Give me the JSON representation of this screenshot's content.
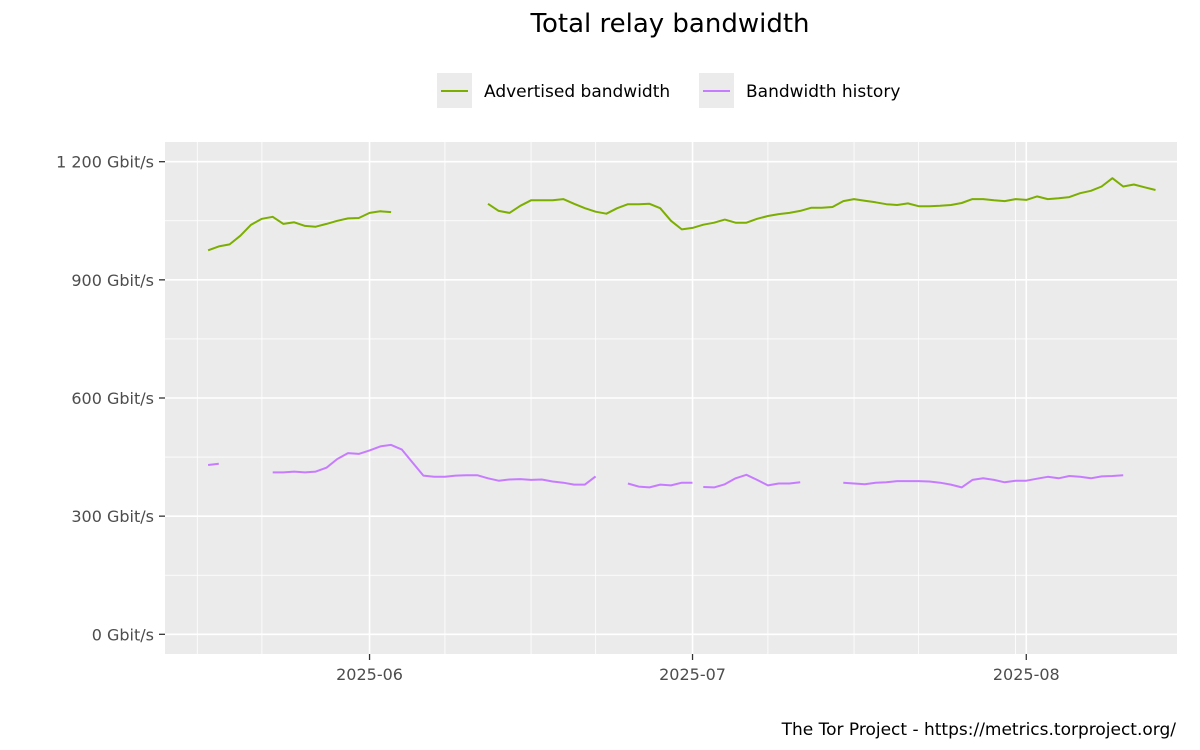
{
  "chart_data": {
    "type": "line",
    "title": "Total relay bandwidth",
    "caption": "The Tor Project - https://metrics.torproject.org/",
    "xlabel": "",
    "ylabel": "",
    "ylim": [
      -50,
      1250
    ],
    "xlim": [
      "2025-05-13",
      "2025-08-15"
    ],
    "y_ticks": [
      {
        "value": 0,
        "label": "0 Gbit/s"
      },
      {
        "value": 300,
        "label": "300 Gbit/s"
      },
      {
        "value": 600,
        "label": "600 Gbit/s"
      },
      {
        "value": 900,
        "label": "900 Gbit/s"
      },
      {
        "value": 1200,
        "label": "1 200 Gbit/s"
      }
    ],
    "y_minor_ticks": [
      150,
      450,
      750,
      1050
    ],
    "x_ticks": [
      {
        "value": "2025-06-01",
        "label": "2025-06"
      },
      {
        "value": "2025-07-01",
        "label": "2025-07"
      },
      {
        "value": "2025-08-01",
        "label": "2025-08"
      }
    ],
    "x_minor_ticks": [
      "2025-05-16",
      "2025-06-16",
      "2025-07-16"
    ],
    "x_extra_grid": [
      "2025-05-22",
      "2025-06-08",
      "2025-06-22",
      "2025-07-08",
      "2025-07-22",
      "2025-07-31"
    ],
    "grid": true,
    "legend_position": "top",
    "colors": {
      "advertised": "#7cae00",
      "history": "#c77cff",
      "panel": "#ebebeb",
      "grid": "#ffffff"
    },
    "series": [
      {
        "name": "Advertised bandwidth",
        "color": "#7cae00",
        "segments": [
          [
            [
              "2025-05-17",
              975
            ],
            [
              "2025-05-18",
              985
            ],
            [
              "2025-05-19",
              990
            ],
            [
              "2025-05-20",
              1012
            ],
            [
              "2025-05-21",
              1040
            ],
            [
              "2025-05-22",
              1055
            ],
            [
              "2025-05-23",
              1060
            ],
            [
              "2025-05-24",
              1042
            ],
            [
              "2025-05-25",
              1046
            ],
            [
              "2025-05-26",
              1037
            ],
            [
              "2025-05-27",
              1035
            ],
            [
              "2025-05-28",
              1042
            ],
            [
              "2025-05-29",
              1050
            ],
            [
              "2025-05-30",
              1056
            ],
            [
              "2025-05-31",
              1057
            ],
            [
              "2025-06-01",
              1070
            ],
            [
              "2025-06-02",
              1074
            ],
            [
              "2025-06-03",
              1072
            ]
          ],
          [
            [
              "2025-06-12",
              1093
            ],
            [
              "2025-06-13",
              1075
            ],
            [
              "2025-06-14",
              1070
            ],
            [
              "2025-06-15",
              1088
            ],
            [
              "2025-06-16",
              1102
            ],
            [
              "2025-06-17",
              1102
            ],
            [
              "2025-06-18",
              1102
            ],
            [
              "2025-06-19",
              1105
            ],
            [
              "2025-06-20",
              1093
            ],
            [
              "2025-06-21",
              1082
            ],
            [
              "2025-06-22",
              1073
            ],
            [
              "2025-06-23",
              1068
            ],
            [
              "2025-06-24",
              1082
            ],
            [
              "2025-06-25",
              1092
            ],
            [
              "2025-06-26",
              1092
            ],
            [
              "2025-06-27",
              1093
            ],
            [
              "2025-06-28",
              1082
            ],
            [
              "2025-06-29",
              1050
            ],
            [
              "2025-06-30",
              1028
            ],
            [
              "2025-07-01",
              1032
            ],
            [
              "2025-07-02",
              1040
            ],
            [
              "2025-07-03",
              1045
            ],
            [
              "2025-07-04",
              1053
            ],
            [
              "2025-07-05",
              1045
            ],
            [
              "2025-07-06",
              1045
            ],
            [
              "2025-07-07",
              1055
            ],
            [
              "2025-07-08",
              1062
            ],
            [
              "2025-07-09",
              1067
            ],
            [
              "2025-07-10",
              1070
            ],
            [
              "2025-07-11",
              1075
            ],
            [
              "2025-07-12",
              1083
            ],
            [
              "2025-07-13",
              1083
            ],
            [
              "2025-07-14",
              1085
            ],
            [
              "2025-07-15",
              1100
            ],
            [
              "2025-07-16",
              1105
            ],
            [
              "2025-07-17",
              1101
            ],
            [
              "2025-07-18",
              1097
            ],
            [
              "2025-07-19",
              1092
            ],
            [
              "2025-07-20",
              1090
            ],
            [
              "2025-07-21",
              1094
            ],
            [
              "2025-07-22",
              1087
            ],
            [
              "2025-07-23",
              1087
            ],
            [
              "2025-07-24",
              1088
            ],
            [
              "2025-07-25",
              1090
            ],
            [
              "2025-07-26",
              1095
            ],
            [
              "2025-07-27",
              1105
            ],
            [
              "2025-07-28",
              1105
            ],
            [
              "2025-07-29",
              1102
            ],
            [
              "2025-07-30",
              1100
            ],
            [
              "2025-07-31",
              1105
            ],
            [
              "2025-08-01",
              1103
            ],
            [
              "2025-08-02",
              1112
            ],
            [
              "2025-08-03",
              1105
            ],
            [
              "2025-08-04",
              1107
            ],
            [
              "2025-08-05",
              1110
            ],
            [
              "2025-08-06",
              1120
            ],
            [
              "2025-08-07",
              1126
            ],
            [
              "2025-08-08",
              1137
            ],
            [
              "2025-08-09",
              1158
            ],
            [
              "2025-08-10",
              1137
            ],
            [
              "2025-08-11",
              1142
            ],
            [
              "2025-08-12",
              1135
            ],
            [
              "2025-08-13",
              1128
            ]
          ]
        ]
      },
      {
        "name": "Bandwidth history",
        "color": "#c77cff",
        "segments": [
          [
            [
              "2025-05-17",
              430
            ],
            [
              "2025-05-18",
              433
            ]
          ],
          [
            [
              "2025-05-23",
              411
            ],
            [
              "2025-05-24",
              411
            ],
            [
              "2025-05-25",
              413
            ],
            [
              "2025-05-26",
              411
            ],
            [
              "2025-05-27",
              413
            ],
            [
              "2025-05-28",
              423
            ],
            [
              "2025-05-29",
              445
            ],
            [
              "2025-05-30",
              460
            ],
            [
              "2025-05-31",
              458
            ],
            [
              "2025-06-01",
              467
            ],
            [
              "2025-06-02",
              477
            ],
            [
              "2025-06-03",
              481
            ],
            [
              "2025-06-04",
              469
            ],
            [
              "2025-06-05",
              436
            ],
            [
              "2025-06-06",
              403
            ],
            [
              "2025-06-07",
              400
            ],
            [
              "2025-06-08",
              400
            ],
            [
              "2025-06-09",
              403
            ],
            [
              "2025-06-10",
              404
            ],
            [
              "2025-06-11",
              404
            ],
            [
              "2025-06-12",
              396
            ],
            [
              "2025-06-13",
              390
            ],
            [
              "2025-06-14",
              393
            ],
            [
              "2025-06-15",
              394
            ],
            [
              "2025-06-16",
              392
            ],
            [
              "2025-06-17",
              393
            ],
            [
              "2025-06-18",
              388
            ],
            [
              "2025-06-19",
              385
            ],
            [
              "2025-06-20",
              380
            ],
            [
              "2025-06-21",
              380
            ],
            [
              "2025-06-22",
              401
            ]
          ],
          [
            [
              "2025-06-25",
              383
            ],
            [
              "2025-06-26",
              375
            ],
            [
              "2025-06-27",
              373
            ],
            [
              "2025-06-28",
              380
            ],
            [
              "2025-06-29",
              378
            ],
            [
              "2025-06-30",
              385
            ],
            [
              "2025-07-01",
              385
            ]
          ],
          [
            [
              "2025-07-02",
              374
            ],
            [
              "2025-07-03",
              373
            ],
            [
              "2025-07-04",
              381
            ],
            [
              "2025-07-05",
              396
            ],
            [
              "2025-07-06",
              405
            ],
            [
              "2025-07-07",
              392
            ],
            [
              "2025-07-08",
              378
            ],
            [
              "2025-07-09",
              383
            ],
            [
              "2025-07-10",
              383
            ],
            [
              "2025-07-11",
              386
            ]
          ]
        ]
      }
    ]
  },
  "chart_data_extra": {
    "history_segment_5": [
      [
        "2025-07-15",
        385
      ],
      [
        "2025-07-16",
        383
      ],
      [
        "2025-07-17",
        381
      ],
      [
        "2025-07-18",
        385
      ],
      [
        "2025-07-19",
        386
      ],
      [
        "2025-07-20",
        389
      ],
      [
        "2025-07-21",
        389
      ],
      [
        "2025-07-22",
        389
      ],
      [
        "2025-07-23",
        388
      ],
      [
        "2025-07-24",
        385
      ],
      [
        "2025-07-25",
        380
      ],
      [
        "2025-07-26",
        373
      ],
      [
        "2025-07-27",
        392
      ],
      [
        "2025-07-28",
        396
      ],
      [
        "2025-07-29",
        392
      ],
      [
        "2025-07-30",
        386
      ],
      [
        "2025-07-31",
        390
      ],
      [
        "2025-08-01",
        390
      ],
      [
        "2025-08-02",
        395
      ],
      [
        "2025-08-03",
        400
      ],
      [
        "2025-08-04",
        396
      ],
      [
        "2025-08-05",
        402
      ],
      [
        "2025-08-06",
        400
      ],
      [
        "2025-08-07",
        396
      ],
      [
        "2025-08-08",
        401
      ],
      [
        "2025-08-09",
        402
      ],
      [
        "2025-08-10",
        404
      ]
    ]
  }
}
